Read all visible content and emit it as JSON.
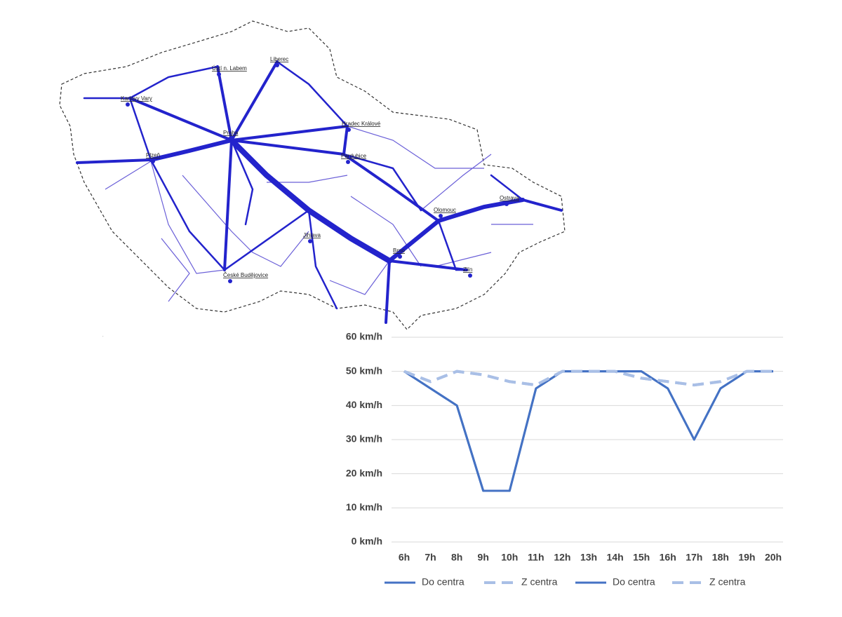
{
  "map": {
    "labels": [
      "Praha",
      "Plzeň",
      "Brno",
      "Ostrava",
      "Olomouc",
      "Liberec",
      "Hradec Králové",
      "Pardubice",
      "Jihlava",
      "České Budějovice",
      "Karlovy Vary",
      "Zlín",
      "Ústí n. Labem"
    ]
  },
  "chart_data": {
    "type": "line",
    "categories": [
      "6h",
      "7h",
      "8h",
      "9h",
      "10h",
      "11h",
      "12h",
      "13h",
      "14h",
      "15h",
      "16h",
      "17h",
      "18h",
      "19h",
      "20h"
    ],
    "series": [
      {
        "name": "Do centra",
        "color": "#4472c4",
        "style": "solid",
        "values": [
          50,
          45,
          40,
          15,
          15,
          45,
          50,
          50,
          50,
          50,
          45,
          30,
          45,
          50,
          50
        ]
      },
      {
        "name": "Z centra",
        "color": "#a9bfe6",
        "style": "dashed",
        "values": [
          50,
          47,
          50,
          49,
          47,
          46,
          50,
          50,
          50,
          48,
          47,
          46,
          47,
          50,
          50
        ]
      },
      {
        "name": "Do centra",
        "color": "#4472c4",
        "style": "solid",
        "values": [
          50,
          45,
          40,
          15,
          15,
          45,
          50,
          50,
          50,
          50,
          45,
          30,
          45,
          50,
          50
        ]
      },
      {
        "name": "Z centra",
        "color": "#a9bfe6",
        "style": "dashed",
        "values": [
          50,
          47,
          50,
          49,
          47,
          46,
          50,
          50,
          50,
          48,
          47,
          46,
          47,
          50,
          50
        ]
      }
    ],
    "ylim": [
      0,
      60
    ],
    "yticks": [
      {
        "value": 0,
        "label": "0 km/h"
      },
      {
        "value": 10,
        "label": "10 km/h"
      },
      {
        "value": 20,
        "label": "20 km/h"
      },
      {
        "value": 30,
        "label": "30 km/h"
      },
      {
        "value": 40,
        "label": "40 km/h"
      },
      {
        "value": 50,
        "label": "50 km/h"
      },
      {
        "value": 60,
        "label": "60 km/h"
      }
    ],
    "grid": true,
    "legend": "bottom"
  }
}
